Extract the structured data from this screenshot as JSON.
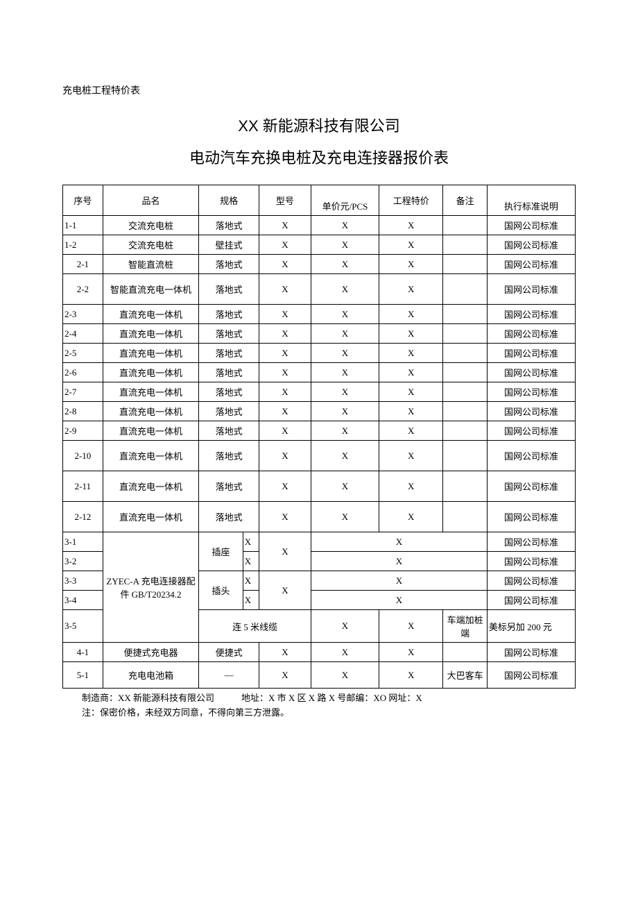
{
  "pre_title": "充电桩工程特价表",
  "company": "XX 新能源科技有限公司",
  "doc_title": "电动汽车充换电桩及充电连接器报价表",
  "columns": {
    "seq": "序号",
    "name": "品名",
    "spec": "规格",
    "model": "型号",
    "price": "单价元/PCS",
    "project": "工程特价",
    "note": "备注",
    "standard": "执行标准说明"
  },
  "rows_a": [
    {
      "seq": "1-1",
      "name": "交流充电桩",
      "spec": "落地式",
      "model": "X",
      "price": "X",
      "project": "X",
      "note": "",
      "std": "国网公司标准"
    },
    {
      "seq": "1-2",
      "name": "交流充电桩",
      "spec": "壁挂式",
      "model": "X",
      "price": "X",
      "project": "X",
      "note": "",
      "std": "国网公司标准"
    },
    {
      "seq": "2-1",
      "name": "智能直流桩",
      "spec": "落地式",
      "model": "X",
      "price": "X",
      "project": "X",
      "note": "",
      "std": "国网公司标准"
    },
    {
      "seq": "2-2",
      "name": "智能直流充电一体机",
      "spec": "落地式",
      "model": "X",
      "price": "X",
      "project": "X",
      "note": "",
      "std": "国网公司标准"
    },
    {
      "seq": "2-3",
      "name": "直流充电一体机",
      "spec": "落地式",
      "model": "X",
      "price": "X",
      "project": "X",
      "note": "",
      "std": "国网公司标准"
    },
    {
      "seq": "2-4",
      "name": "直流充电一体机",
      "spec": "落地式",
      "model": "X",
      "price": "X",
      "project": "X",
      "note": "",
      "std": "国网公司标准"
    },
    {
      "seq": "2-5",
      "name": "直流充电一体机",
      "spec": "落地式",
      "model": "X",
      "price": "X",
      "project": "X",
      "note": "",
      "std": "国网公司标准"
    },
    {
      "seq": "2-6",
      "name": "直流充电一体机",
      "spec": "落地式",
      "model": "X",
      "price": "X",
      "project": "X",
      "note": "",
      "std": "国网公司标准"
    },
    {
      "seq": "2-7",
      "name": "直流充电一体机",
      "spec": "落地式",
      "model": "X",
      "price": "X",
      "project": "X",
      "note": "",
      "std": "国网公司标准"
    },
    {
      "seq": "2-8",
      "name": "直流充电一体机",
      "spec": "落地式",
      "model": "X",
      "price": "X",
      "project": "X",
      "note": "",
      "std": "国网公司标准"
    },
    {
      "seq": "2-9",
      "name": "直流充电一体机",
      "spec": "落地式",
      "model": "X",
      "price": "X",
      "project": "X",
      "note": "",
      "std": "国网公司标准"
    },
    {
      "seq": "2-10",
      "name": "直流充电一体机",
      "spec": "落地式",
      "model": "X",
      "price": "X",
      "project": "X",
      "note": "",
      "std": "国网公司标准"
    },
    {
      "seq": "2-11",
      "name": "直流充电一体机",
      "spec": "落地式",
      "model": "X",
      "price": "X",
      "project": "X",
      "note": "",
      "std": "国网公司标准"
    },
    {
      "seq": "2-12",
      "name": "直流充电一体机",
      "spec": "落地式",
      "model": "X",
      "price": "X",
      "project": "X",
      "note": "",
      "std": "国网公司标准"
    }
  ],
  "connector": {
    "name": "ZYEC-A 充电连接器配件 GB/T20234.2",
    "socket_label": "插座",
    "plug_label": "插头",
    "cable_label": "连 5 米线缆",
    "model_x": "X",
    "rows": [
      {
        "seq": "3-1",
        "sx": "X",
        "price": "X",
        "std": "国网公司标准"
      },
      {
        "seq": "3-2",
        "sx": "X",
        "price": "X",
        "std": "国网公司标准"
      },
      {
        "seq": "3-3",
        "sx": "X",
        "price": "X",
        "std": "国网公司标准"
      },
      {
        "seq": "3-4",
        "sx": "X",
        "price": "X",
        "std": "国网公司标准"
      }
    ],
    "row5": {
      "seq": "3-5",
      "price": "X",
      "project": "X",
      "note": "车端加桩端",
      "std": "美标另加 200 元"
    }
  },
  "rows_b": [
    {
      "seq": "4-1",
      "name": "便捷式充电器",
      "spec": "便捷式",
      "model": "X",
      "price": "X",
      "project": "X",
      "note": "",
      "std": "国网公司标准"
    },
    {
      "seq": "5-1",
      "name": "充电电池箱",
      "spec": "—",
      "model": "X",
      "price": "X",
      "project": "X",
      "note": "大巴客车",
      "std": "国网公司标准"
    }
  ],
  "footer": {
    "line1": "制造商：XX 新能源科技有限公司　　　地址：X 市 X 区 X 路 X 号邮编：XO 网址：X",
    "line2": "注：保密价格，未经双方同意，不得向第三方泄露。"
  }
}
